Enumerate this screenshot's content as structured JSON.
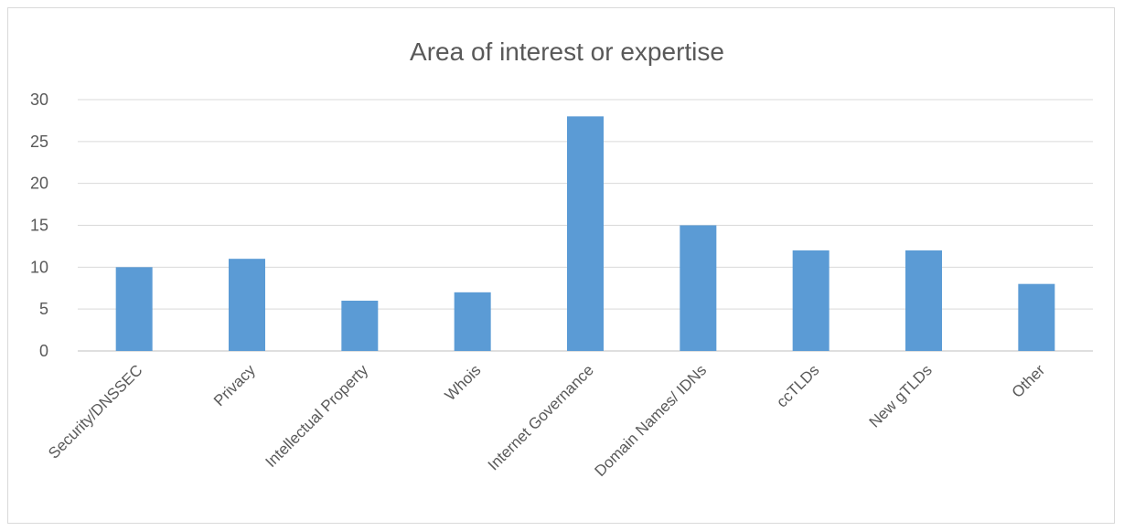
{
  "chart_data": {
    "type": "bar",
    "title": "Area of interest or expertise",
    "xlabel": "",
    "ylabel": "",
    "categories": [
      "Security/DNSSEC",
      "Privacy",
      "Intellectual Property",
      "Whois",
      "Internet Governance",
      "Domain Names/ IDNs",
      "ccTLDs",
      "New gTLDs",
      "Other"
    ],
    "values": [
      10,
      11,
      6,
      7,
      28,
      15,
      12,
      12,
      8
    ],
    "ylim": [
      0,
      30
    ],
    "yticks": [
      0,
      5,
      10,
      15,
      20,
      25,
      30
    ],
    "grid": true,
    "legend": "none",
    "bar_color": "#5b9bd5"
  }
}
